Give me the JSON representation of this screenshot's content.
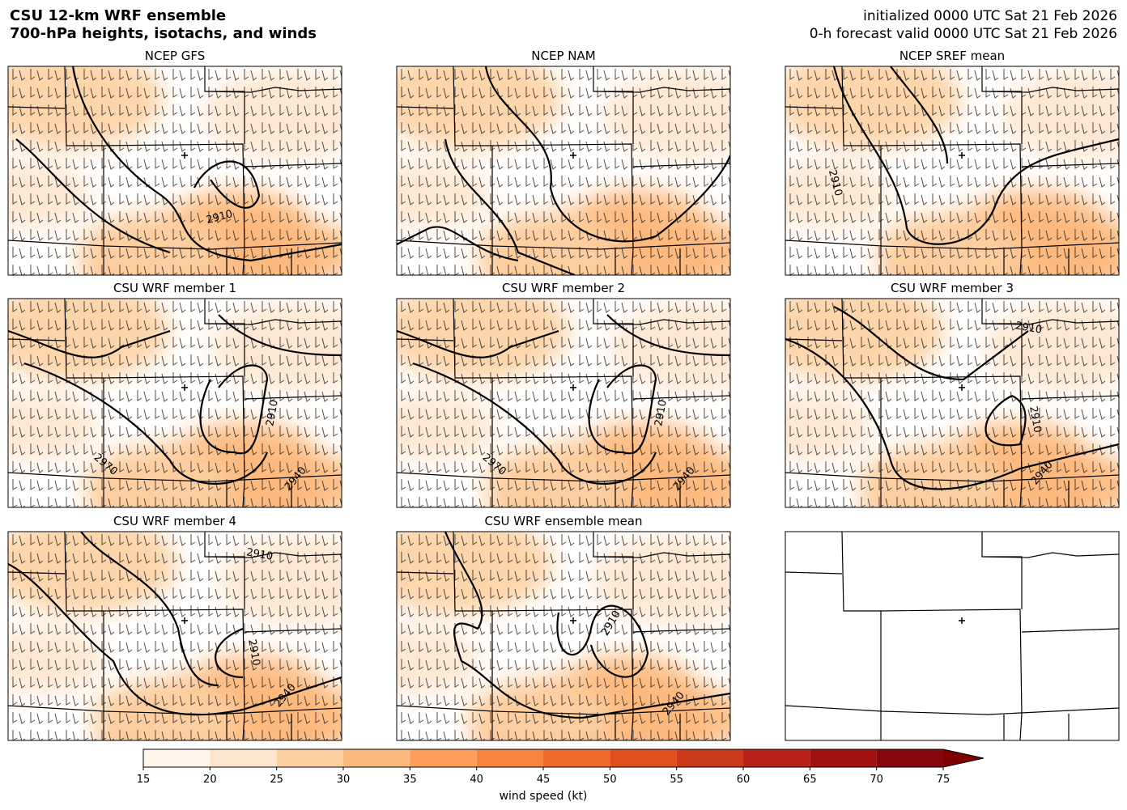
{
  "header": {
    "title": [
      "CSU 12-km WRF ensemble",
      "700-hPa heights, isotachs, and winds"
    ],
    "valid": [
      "initialized 0000 UTC Sat 21 Feb 2026",
      "0-h forecast valid 0000 UTC Sat 21 Feb 2026"
    ]
  },
  "panels": [
    {
      "title": "NCEP GFS",
      "contour_labels": [
        "2910"
      ]
    },
    {
      "title": "NCEP NAM",
      "contour_labels": []
    },
    {
      "title": "NCEP SREF mean",
      "contour_labels": [
        "2910"
      ]
    },
    {
      "title": "CSU WRF member 1",
      "contour_labels": [
        "2910",
        "2970",
        "2940"
      ]
    },
    {
      "title": "CSU WRF member 2",
      "contour_labels": [
        "2910",
        "2970",
        "2940"
      ]
    },
    {
      "title": "CSU WRF member 3",
      "contour_labels": [
        "2910",
        "2910",
        "2940"
      ]
    },
    {
      "title": "CSU WRF member 4",
      "contour_labels": [
        "2910",
        "2910",
        "2940"
      ]
    },
    {
      "title": "CSU WRF ensemble mean",
      "contour_labels": [
        "2910",
        "2940"
      ]
    }
  ],
  "colorbar": {
    "label": "wind speed (kt)",
    "ticks": [
      15,
      20,
      25,
      30,
      35,
      40,
      45,
      50,
      55,
      60,
      65,
      70,
      75
    ],
    "colors": [
      "#fff5eb",
      "#fee6ce",
      "#fdd0a2",
      "#fdb97d",
      "#fd9f5a",
      "#f8853e",
      "#ef6a2b",
      "#e0501e",
      "#cc3a1c",
      "#b8221a",
      "#a31212",
      "#86070d",
      "#7f0000"
    ]
  }
}
